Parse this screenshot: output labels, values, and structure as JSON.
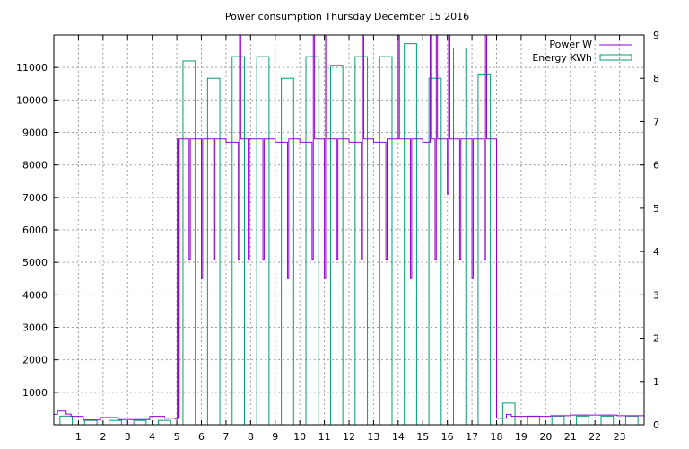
{
  "chart_data": {
    "type": "bar",
    "title": "Power consumption Thursday December 15 2016",
    "xlabel": "",
    "ylabel": "",
    "y2label": "",
    "grid": true,
    "legend_position": "top-right",
    "x_range": [
      0,
      24
    ],
    "y_range": [
      0,
      12000
    ],
    "y2_range": [
      0,
      9
    ],
    "x_ticks": [
      "1",
      "2",
      "3",
      "4",
      "5",
      "6",
      "7",
      "8",
      "9",
      "10",
      "11",
      "12",
      "13",
      "14",
      "15",
      "16",
      "17",
      "18",
      "19",
      "20",
      "21",
      "22",
      "23"
    ],
    "y_ticks": [
      "1000",
      "2000",
      "3000",
      "4000",
      "5000",
      "6000",
      "7000",
      "8000",
      "9000",
      "10000",
      "11000"
    ],
    "y2_ticks": [
      "0",
      "1",
      "2",
      "3",
      "4",
      "5",
      "6",
      "7",
      "8",
      "9"
    ],
    "colors": {
      "power": "#9400d3",
      "energy": "#009e73"
    },
    "series": [
      {
        "name": "Power W",
        "type": "step",
        "axis": "y",
        "points": [
          [
            0.0,
            320
          ],
          [
            0.15,
            420
          ],
          [
            0.5,
            330
          ],
          [
            0.7,
            260
          ],
          [
            1.2,
            150
          ],
          [
            1.9,
            220
          ],
          [
            2.6,
            160
          ],
          [
            3.9,
            260
          ],
          [
            4.5,
            200
          ],
          [
            4.95,
            170
          ],
          [
            5.02,
            8800
          ],
          [
            5.05,
            200
          ],
          [
            5.1,
            8800
          ],
          [
            5.5,
            5100
          ],
          [
            5.55,
            8800
          ],
          [
            6.0,
            4500
          ],
          [
            6.05,
            8800
          ],
          [
            6.5,
            5100
          ],
          [
            6.55,
            8800
          ],
          [
            7.0,
            8700
          ],
          [
            7.5,
            5100
          ],
          [
            7.55,
            12000
          ],
          [
            7.6,
            8800
          ],
          [
            7.9,
            5100
          ],
          [
            7.95,
            8800
          ],
          [
            8.5,
            5100
          ],
          [
            8.55,
            8800
          ],
          [
            9.0,
            8700
          ],
          [
            9.5,
            4500
          ],
          [
            9.55,
            8800
          ],
          [
            10.0,
            8700
          ],
          [
            10.5,
            5100
          ],
          [
            10.55,
            12000
          ],
          [
            10.6,
            8800
          ],
          [
            11.0,
            4500
          ],
          [
            11.05,
            12000
          ],
          [
            11.1,
            8800
          ],
          [
            11.5,
            5100
          ],
          [
            11.55,
            8800
          ],
          [
            12.0,
            8700
          ],
          [
            12.5,
            5100
          ],
          [
            12.55,
            12000
          ],
          [
            12.6,
            8800
          ],
          [
            13.0,
            8700
          ],
          [
            13.5,
            5100
          ],
          [
            13.55,
            8800
          ],
          [
            14.0,
            12000
          ],
          [
            14.05,
            8800
          ],
          [
            14.5,
            4500
          ],
          [
            14.55,
            8800
          ],
          [
            15.0,
            8700
          ],
          [
            15.3,
            12000
          ],
          [
            15.35,
            8800
          ],
          [
            15.5,
            5100
          ],
          [
            15.55,
            12000
          ],
          [
            15.6,
            8800
          ],
          [
            16.0,
            7100
          ],
          [
            16.05,
            12000
          ],
          [
            16.1,
            8800
          ],
          [
            16.5,
            5100
          ],
          [
            16.55,
            8800
          ],
          [
            17.0,
            4500
          ],
          [
            17.05,
            8800
          ],
          [
            17.5,
            5100
          ],
          [
            17.55,
            12000
          ],
          [
            17.6,
            8800
          ],
          [
            18.0,
            200
          ],
          [
            18.4,
            320
          ],
          [
            18.6,
            260
          ],
          [
            20.2,
            280
          ],
          [
            21.0,
            300
          ],
          [
            22.9,
            280
          ],
          [
            24.0,
            280
          ]
        ]
      },
      {
        "name": "Energy KWh",
        "type": "bar",
        "axis": "y2",
        "bar_width": 0.5,
        "x": [
          0.5,
          1.5,
          2.5,
          3.5,
          4.5,
          5.5,
          6.5,
          7.5,
          8.5,
          9.5,
          10.5,
          11.5,
          12.5,
          13.5,
          14.5,
          15.5,
          16.5,
          17.5,
          18.5,
          19.5,
          20.5,
          21.5,
          22.5,
          23.5
        ],
        "values": [
          0.2,
          0.1,
          0.1,
          0.1,
          0.1,
          8.4,
          8.0,
          8.5,
          8.5,
          8.0,
          8.5,
          8.3,
          8.5,
          8.5,
          8.8,
          8.0,
          8.7,
          8.1,
          0.5,
          0.2,
          0.2,
          0.2,
          0.2,
          0.2
        ]
      }
    ]
  }
}
